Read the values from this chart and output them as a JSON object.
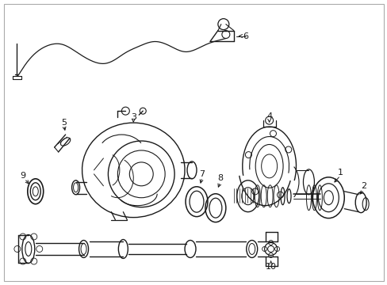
{
  "background_color": "#ffffff",
  "border_color": "#cccccc",
  "line_color": "#1a1a1a",
  "fig_width": 4.89,
  "fig_height": 3.6,
  "dpi": 100
}
